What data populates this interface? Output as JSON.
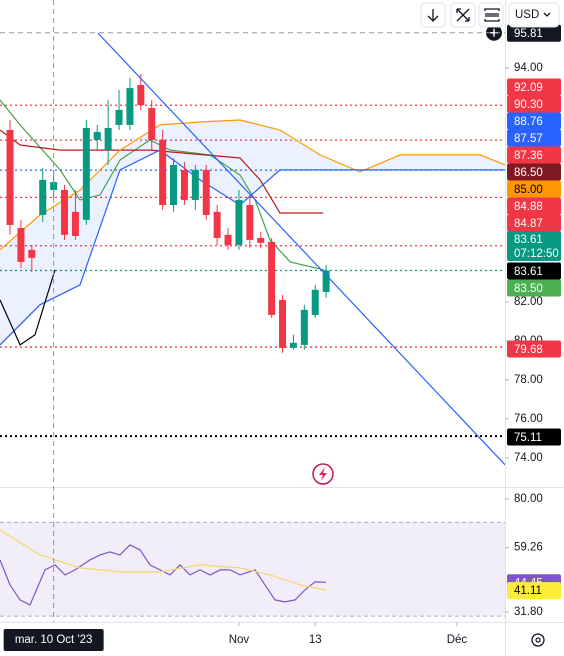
{
  "toolbar": {
    "currency": "USD"
  },
  "chart_data": [
    {
      "type": "candlestick",
      "xlim": [
        -0.92,
        45.41
      ],
      "xticks": [
        {
          "value": 21,
          "label": "Nov"
        },
        {
          "value": 28,
          "label": "13"
        },
        {
          "value": 41,
          "label": "Déc"
        }
      ],
      "crosshair": {
        "x": {
          "value": 4,
          "label": "mar. 10 Oct '23"
        },
        "y": {
          "value": 95.81,
          "label": "95.81"
        }
      },
      "ylim": [
        72.5,
        97.49
      ],
      "yticks": [
        {
          "value": 74,
          "label": "74.00"
        },
        {
          "value": 76,
          "label": "76.00"
        },
        {
          "value": 78,
          "label": "78.00"
        },
        {
          "value": 80,
          "label": "80.00"
        },
        {
          "value": 82,
          "label": "82.00"
        },
        {
          "value": 94,
          "label": "94.00"
        }
      ],
      "grid": false,
      "up_color": "#089981",
      "down_color": "#f23645",
      "x": [
        0,
        1,
        2,
        3,
        4,
        5,
        6,
        7,
        8,
        9,
        10,
        11,
        12,
        13,
        14,
        15,
        16,
        17,
        18,
        19,
        20,
        21,
        22,
        23,
        24,
        25,
        26,
        27,
        28,
        29
      ],
      "open": [
        90.82,
        85.79,
        84.67,
        86.46,
        87.74,
        87.74,
        86.62,
        86.21,
        90.31,
        89.79,
        91.08,
        91.08,
        93.13,
        91.95,
        90.31,
        86.97,
        88.77,
        87.23,
        88.77,
        86.62,
        85.44,
        84.92,
        86.97,
        85.28,
        85.08,
        82.1,
        79.64,
        79.79,
        81.33,
        82.51
      ],
      "high": [
        91.33,
        86.21,
        84.92,
        88.87,
        88.77,
        88,
        87.74,
        91.33,
        91.08,
        92.36,
        92.87,
        93.49,
        93.69,
        92.36,
        90.82,
        89.38,
        89.18,
        89.03,
        89.03,
        86.97,
        85.79,
        87.74,
        87.49,
        85.59,
        85.28,
        82.36,
        80.31,
        81.85,
        82.87,
        83.9
      ],
      "low": [
        85.44,
        83.74,
        83.54,
        86.1,
        87.23,
        85.18,
        85.18,
        85.95,
        89.79,
        89.03,
        90.82,
        90.82,
        91.85,
        89.79,
        86.72,
        86.62,
        86.97,
        86.72,
        86.21,
        84.92,
        84.67,
        84.67,
        84.77,
        84.77,
        81.18,
        79.38,
        79.54,
        79.54,
        81.18,
        82.21
      ],
      "close": [
        85.95,
        84.05,
        84.26,
        88.26,
        88.15,
        85.44,
        85.38,
        90.92,
        90.72,
        90.92,
        91.85,
        92.97,
        92.1,
        90.31,
        86.97,
        89.03,
        87.23,
        88.77,
        86.46,
        85.28,
        84.92,
        87.23,
        85.18,
        85.03,
        81.33,
        79.64,
        79.9,
        81.59,
        82.62,
        83.61
      ],
      "series": [
        {
          "color": "#43a047",
          "x": [
            -0.92,
            0.92,
            4.59,
            6.42,
            8.26,
            10.09,
            12.84,
            14.68,
            18.35,
            21.1,
            22.48,
            23.85,
            25.69,
            28.81
          ],
          "values": [
            92.36,
            91.08,
            88.77,
            87.23,
            87.49,
            89.28,
            90.31,
            89.79,
            89.54,
            88.51,
            87.23,
            85.18,
            84.05,
            83.64
          ]
        },
        {
          "color": "#b71c1c",
          "x": [
            -0.92,
            0.92,
            4.59,
            12.84,
            21.1,
            22.94,
            24.77,
            28.72
          ],
          "values": [
            90.82,
            90.05,
            89.79,
            89.79,
            89.38,
            88.26,
            86.56,
            86.56
          ]
        },
        {
          "color": "#ff9800",
          "x": [
            -0.92,
            2.75,
            6.42,
            10.09,
            13.76,
            17.43,
            21.1,
            24.77,
            28.44,
            32.11,
            35.78,
            39.45,
            43.12,
            45.41
          ],
          "values": [
            84.67,
            86.46,
            87.74,
            89.79,
            91.08,
            91.23,
            91.33,
            90.82,
            89.54,
            88.67,
            89.54,
            89.54,
            89.54,
            89.03
          ]
        },
        {
          "color": "#2962ff",
          "fill": "rgba(41,98,255,0.09)",
          "x": [
            -0.92,
            2.75,
            6.42,
            10.09,
            13.76,
            17.43,
            21.1,
            24.77,
            28.44,
            32.11,
            35.78,
            39.45,
            43.12,
            45.41
          ],
          "values": [
            79.79,
            81.85,
            82.87,
            88.77,
            89.79,
            88.26,
            86.97,
            88.77,
            88.77,
            88.77,
            88.77,
            88.77,
            88.77,
            88.77
          ]
        },
        {
          "color": "#000000",
          "x": [
            -0.92,
            0.92,
            2.29,
            4.13
          ],
          "values": [
            82.1,
            79.79,
            80.31,
            83.64
          ]
        }
      ],
      "trendline": {
        "color": "#2962ff",
        "x": [
          8.07,
          45.41
        ],
        "values": [
          95.79,
          73.64
        ]
      },
      "levels": [
        {
          "value": 92.09,
          "label": "92.09",
          "color": "#f23645",
          "line": "dotted"
        },
        {
          "value": 90.3,
          "label": "90.30",
          "color": "#f23645",
          "line": "dotted"
        },
        {
          "value": 88.76,
          "label": "88.76",
          "color": "#2962ff",
          "line": "dotted"
        },
        {
          "value": 87.57,
          "label": "87.57",
          "color": "#2962ff"
        },
        {
          "value": 87.36,
          "label": "87.36",
          "color": "#f23645",
          "line": "dotted"
        },
        {
          "value": 86.5,
          "label": "86.50",
          "color": "#801922"
        },
        {
          "value": 85,
          "label": "85.00",
          "color": "#ff9800",
          "text_color": "#000000"
        },
        {
          "value": 84.88,
          "label": "84.88",
          "color": "#f23645",
          "line": "dotted"
        },
        {
          "value": 84.87,
          "label": "84.87",
          "color": "#f23645"
        },
        {
          "value": 83.61,
          "label": "83.61",
          "sublabel": "07:12:50",
          "color": "#089981",
          "line": "dotted"
        },
        {
          "value": 83.61,
          "label": "83.61",
          "color": "#000000"
        },
        {
          "value": 83.5,
          "label": "83.50",
          "color": "#4caf50"
        },
        {
          "value": 79.68,
          "label": "79.68",
          "color": "#f23645",
          "line": "dotted"
        },
        {
          "value": 75.11,
          "label": "75.11",
          "color": "#000000",
          "line": "dotted-bold"
        }
      ]
    },
    {
      "type": "line",
      "xlim": [
        -0.92,
        45.41
      ],
      "ylim": [
        27.5,
        83.8
      ],
      "yticks": [
        {
          "value": 80,
          "label": "80.00"
        },
        {
          "value": 59.26,
          "label": "59.26"
        },
        {
          "value": 31.8,
          "label": "31.80"
        }
      ],
      "band": [
        30,
        70
      ],
      "band_color": "rgba(126,87,194,0.1)",
      "series": [
        {
          "color": "#7e57c2",
          "x": [
            -0.92,
            0,
            0.92,
            1.83,
            3.21,
            4.13,
            5.05,
            5.96,
            7.34,
            8.26,
            9.17,
            10.09,
            11.01,
            11.93,
            12.84,
            13.76,
            14.68,
            15.6,
            16.51,
            17.43,
            18.35,
            19.27,
            20.18,
            21.1,
            22.48,
            23.39,
            24.31,
            25.23,
            26.15,
            27.06,
            27.98,
            29
          ],
          "values": [
            53.98,
            43.31,
            36.91,
            34.78,
            49.71,
            51.84,
            47.58,
            49.71,
            53.98,
            56.11,
            57.39,
            56.11,
            60.38,
            58.24,
            51.84,
            49.71,
            47.58,
            51.84,
            47.58,
            49.71,
            47.58,
            49.71,
            49.71,
            47.58,
            49.71,
            43.31,
            36.91,
            36.06,
            36.91,
            41.18,
            44.59,
            44.45
          ]
        },
        {
          "color": "#f5d76e",
          "x": [
            -0.92,
            2.75,
            6.42,
            10.09,
            13.76,
            17.43,
            21.1,
            23.85,
            26.61,
            29
          ],
          "values": [
            66.77,
            56.11,
            50.56,
            48.86,
            48.86,
            51.84,
            50.56,
            47.58,
            43.31,
            41.11
          ]
        }
      ],
      "levels": [
        {
          "value": 44.45,
          "label": "44.45",
          "color": "#7e57c2"
        },
        {
          "value": 41.11,
          "label": "41.11",
          "color": "#ffeb3b",
          "text_color": "#000000"
        }
      ]
    }
  ]
}
